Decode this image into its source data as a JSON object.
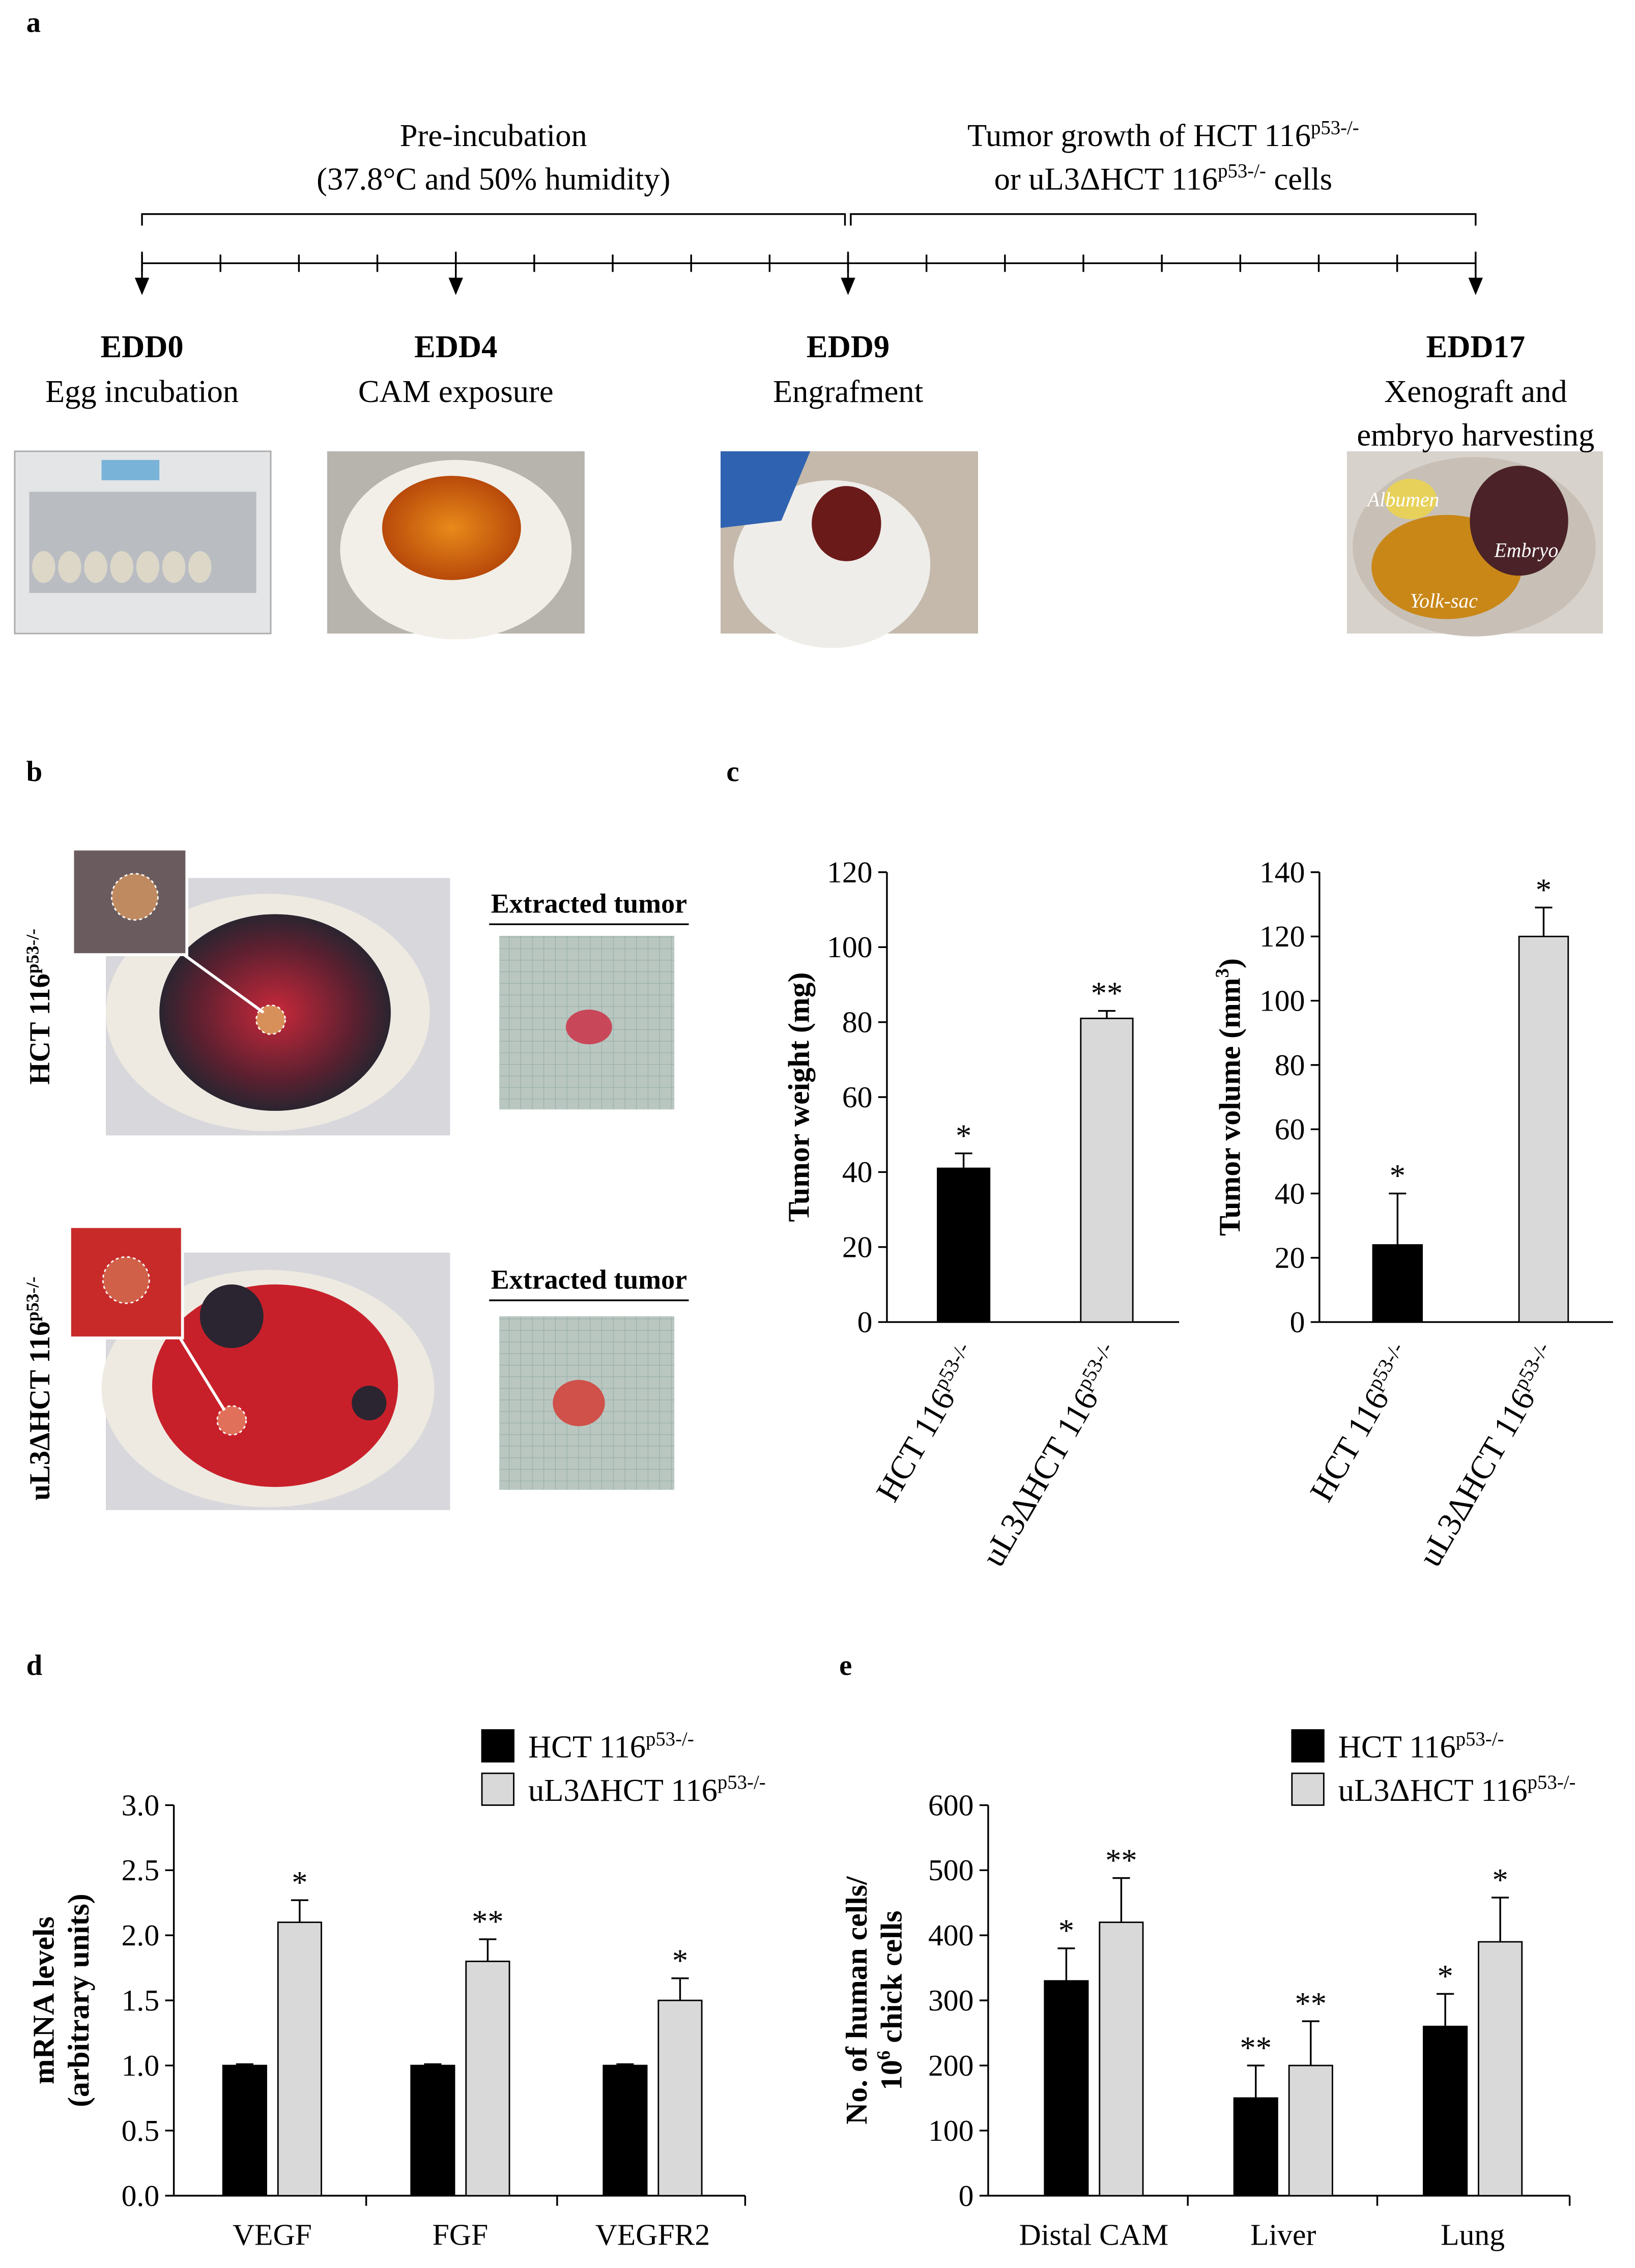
{
  "panel_labels": [
    "a",
    "b",
    "c",
    "d",
    "e"
  ],
  "timeline": {
    "brackets": [
      {
        "lines": [
          {
            "text": "Pre-incubation"
          },
          {
            "text": "(37.8°C and 50% humidity)"
          }
        ]
      },
      {
        "lines": [
          {
            "text": "Tumor growth of HCT 116",
            "sup": "p53-/-"
          },
          {
            "text": "or uL3ΔHCT 116",
            "sup": "p53-/-",
            "after": " cells"
          }
        ]
      }
    ],
    "events": [
      {
        "day": "EDD0",
        "lines": [
          "Egg incubation"
        ]
      },
      {
        "day": "EDD4",
        "lines": [
          "CAM exposure"
        ]
      },
      {
        "day": "EDD9",
        "lines": [
          "Engrafment"
        ]
      },
      {
        "day": "EDD17",
        "lines": [
          "Xenograft and",
          "embryo harvesting"
        ]
      }
    ]
  },
  "photo_labels": [
    "Albumen",
    "Embryo",
    "Yolk-sac"
  ],
  "rows": [
    {
      "text": "HCT 116",
      "sup": "p53-/-"
    },
    {
      "text": "uL3ΔHCT 116",
      "sup": "p53-/-"
    }
  ],
  "extracted_labels": [
    "Extracted tumor",
    "Extracted tumor"
  ],
  "chart_data": [
    {
      "type": "bar",
      "ylabel": [
        {
          "text": "Tumor weight (mg)"
        }
      ],
      "categories": [
        {
          "text": "HCT 116",
          "sup": "p53-/-"
        },
        {
          "text": "uL3ΔHCT 116",
          "sup": "p53-/-"
        }
      ],
      "values": [
        41,
        81
      ],
      "errors": [
        4,
        2
      ],
      "annotations": [
        "*",
        "**"
      ],
      "colors": [
        "#000000",
        "#d9d9d9"
      ],
      "ylim": [
        0,
        120
      ],
      "yticks": [
        0,
        20,
        40,
        60,
        80,
        100,
        120
      ]
    },
    {
      "type": "bar",
      "ylabel": [
        {
          "text": "Tumor volume (mm",
          "sup": "3",
          "after": ")"
        }
      ],
      "categories": [
        {
          "text": "HCT 116",
          "sup": "p53-/-"
        },
        {
          "text": "uL3ΔHCT 116",
          "sup": "p53-/-"
        }
      ],
      "values": [
        24,
        120
      ],
      "errors": [
        16,
        9
      ],
      "annotations": [
        "*",
        "*"
      ],
      "colors": [
        "#000000",
        "#d9d9d9"
      ],
      "ylim": [
        0,
        140
      ],
      "yticks": [
        0,
        20,
        40,
        60,
        80,
        100,
        120,
        140
      ]
    },
    {
      "type": "bar",
      "ylabel": [
        {
          "text": "mRNA levels"
        },
        {
          "text": "(arbitrary units)"
        }
      ],
      "categories": [
        {
          "text": "VEGF"
        },
        {
          "text": "FGF"
        },
        {
          "text": "VEGFR2"
        }
      ],
      "series": [
        {
          "name": {
            "text": "HCT 116",
            "sup": "p53-/-"
          },
          "color": "#000000",
          "values": [
            1,
            1,
            1
          ],
          "errors": [
            0.01,
            0.01,
            0.01
          ],
          "annotations": [
            null,
            null,
            null
          ]
        },
        {
          "name": {
            "text": "uL3ΔHCT 116",
            "sup": "p53-/-"
          },
          "color": "#d9d9d9",
          "values": [
            2.1,
            1.8,
            1.5
          ],
          "errors": [
            0.17,
            0.17,
            0.17
          ],
          "annotations": [
            "*",
            "**",
            "*"
          ]
        }
      ],
      "ylim": [
        0,
        3
      ],
      "yticks": [
        {
          "value": 0,
          "label": "0.0"
        },
        0.5,
        {
          "value": 1,
          "label": "1.0"
        },
        1.5,
        {
          "value": 2,
          "label": "2.0"
        },
        2.5,
        {
          "value": 3,
          "label": "3.0"
        }
      ]
    },
    {
      "type": "bar",
      "ylabel": [
        {
          "text": "No. of human cells/"
        },
        {
          "text": "10",
          "sup": "6",
          "after": " chick cells"
        }
      ],
      "categories": [
        {
          "text": "Distal CAM"
        },
        {
          "text": "Liver"
        },
        {
          "text": "Lung"
        }
      ],
      "series": [
        {
          "name": {
            "text": "HCT 116",
            "sup": "p53-/-"
          },
          "color": "#000000",
          "values": [
            330,
            150,
            260
          ],
          "errors": [
            50,
            50,
            50
          ],
          "annotations": [
            "*",
            "**",
            "*"
          ]
        },
        {
          "name": {
            "text": "uL3ΔHCT 116",
            "sup": "p53-/-"
          },
          "color": "#d9d9d9",
          "values": [
            420,
            200,
            390
          ],
          "errors": [
            68,
            68,
            68
          ],
          "annotations": [
            "**",
            "**",
            "*"
          ]
        }
      ],
      "ylim": [
        0,
        600
      ],
      "yticks": [
        0,
        100,
        200,
        300,
        400,
        500,
        600
      ]
    }
  ]
}
